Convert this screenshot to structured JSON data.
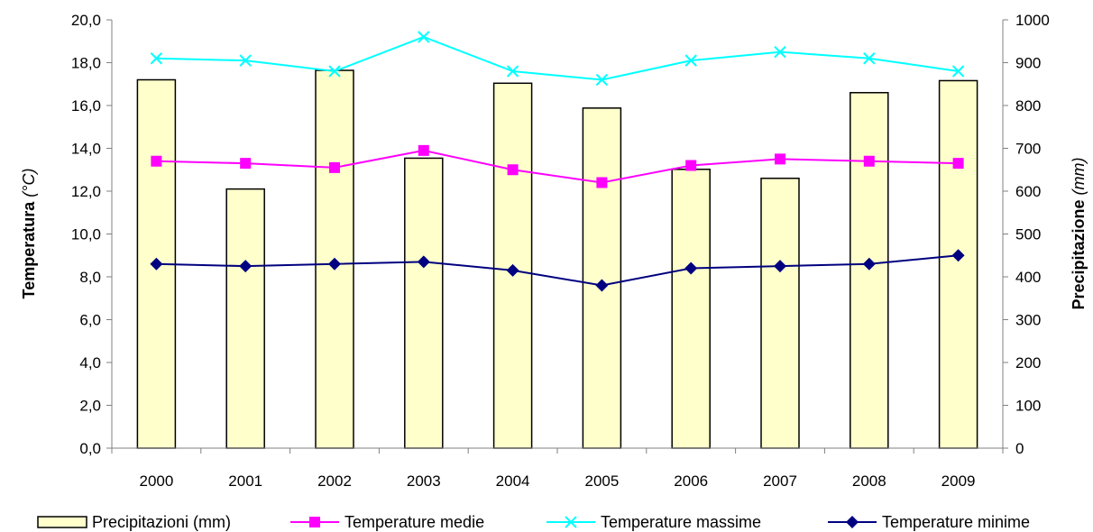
{
  "chart_data": {
    "type": "bar",
    "categories": [
      "2000",
      "2001",
      "2002",
      "2003",
      "2004",
      "2005",
      "2006",
      "2007",
      "2008",
      "2009"
    ],
    "bar_series": {
      "name": "Precipitazioni (mm)",
      "axis": "right",
      "values": [
        860,
        605,
        882,
        677,
        852,
        794,
        651,
        630,
        830,
        858
      ],
      "color": "#FFFFCC"
    },
    "line_series": [
      {
        "name": "Temperature medie",
        "axis": "left",
        "color": "#FF00FF",
        "marker": "square",
        "values": [
          13.4,
          13.3,
          13.1,
          13.9,
          13.0,
          12.4,
          13.2,
          13.5,
          13.4,
          13.3
        ]
      },
      {
        "name": "Temperature massime",
        "axis": "left",
        "color": "#00FFFF",
        "marker": "x",
        "values": [
          18.2,
          18.1,
          17.6,
          19.2,
          17.6,
          17.2,
          18.1,
          18.5,
          18.2,
          17.6
        ]
      },
      {
        "name": "Temperature minime",
        "axis": "left",
        "color": "#000080",
        "marker": "diamond",
        "values": [
          8.6,
          8.5,
          8.6,
          8.7,
          8.3,
          7.6,
          8.4,
          8.5,
          8.6,
          9.0
        ]
      }
    ],
    "y_left": {
      "label": "Temperatura",
      "unit": "(°C)",
      "ylim": [
        0,
        20
      ],
      "ticks": [
        "0,0",
        "2,0",
        "4,0",
        "6,0",
        "8,0",
        "10,0",
        "12,0",
        "14,0",
        "16,0",
        "18,0",
        "20,0"
      ]
    },
    "y_right": {
      "label": "Precipitazione",
      "unit": "(mm)",
      "ylim": [
        0,
        1000
      ],
      "ticks": [
        "0",
        "100",
        "200",
        "300",
        "400",
        "500",
        "600",
        "700",
        "800",
        "900",
        "1000"
      ]
    },
    "legend_position": "bottom",
    "grid": false
  }
}
